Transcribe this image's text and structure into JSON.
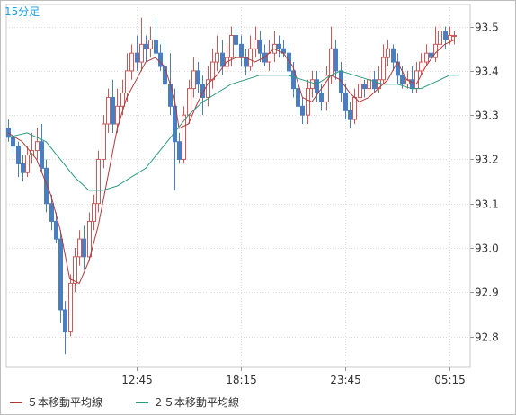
{
  "chart_data": {
    "type": "candlestick",
    "timeframe": "15分足",
    "y_axis": {
      "min": 92.73,
      "max": 93.55,
      "ticks": [
        92.8,
        92.9,
        93.0,
        93.1,
        93.2,
        93.3,
        93.4,
        93.5
      ],
      "position": "right"
    },
    "x_axis": {
      "ticks": [
        {
          "label": "12:45",
          "index": 27
        },
        {
          "label": "18:15",
          "index": 49
        },
        {
          "label": "23:45",
          "index": 71
        },
        {
          "label": "05:15",
          "index": 93
        }
      ]
    },
    "grid": true,
    "candle_colors": {
      "up": "#c85a5a",
      "down": "#4a7ec0"
    },
    "legend": {
      "position": "bottom-left"
    },
    "series": [
      {
        "name": "５本移動平均線",
        "color": "#b03a3a",
        "points": [
          [
            0,
            93.26
          ],
          [
            3,
            93.24
          ],
          [
            6,
            93.2
          ],
          [
            9,
            93.12
          ],
          [
            11,
            93.04
          ],
          [
            13,
            92.93
          ],
          [
            15,
            92.92
          ],
          [
            17,
            92.97
          ],
          [
            19,
            93.05
          ],
          [
            21,
            93.16
          ],
          [
            23,
            93.27
          ],
          [
            25,
            93.34
          ],
          [
            27,
            93.38
          ],
          [
            29,
            93.42
          ],
          [
            31,
            93.43
          ],
          [
            33,
            93.41
          ],
          [
            35,
            93.34
          ],
          [
            36,
            93.27
          ],
          [
            38,
            93.28
          ],
          [
            40,
            93.33
          ],
          [
            42,
            93.37
          ],
          [
            44,
            93.39
          ],
          [
            46,
            93.42
          ],
          [
            48,
            93.43
          ],
          [
            50,
            93.43
          ],
          [
            52,
            93.42
          ],
          [
            54,
            93.43
          ],
          [
            56,
            93.45
          ],
          [
            58,
            93.44
          ],
          [
            60,
            93.41
          ],
          [
            62,
            93.34
          ],
          [
            64,
            93.33
          ],
          [
            66,
            93.36
          ],
          [
            68,
            93.39
          ],
          [
            70,
            93.38
          ],
          [
            72,
            93.35
          ],
          [
            74,
            93.33
          ],
          [
            76,
            93.34
          ],
          [
            78,
            93.36
          ],
          [
            80,
            93.38
          ],
          [
            82,
            93.42
          ],
          [
            84,
            93.38
          ],
          [
            86,
            93.37
          ],
          [
            88,
            93.41
          ],
          [
            90,
            93.44
          ],
          [
            92,
            93.46
          ],
          [
            94,
            93.47
          ]
        ]
      },
      {
        "name": "２５本移動平均線",
        "color": "#2a9a80",
        "points": [
          [
            0,
            93.25
          ],
          [
            4,
            93.26
          ],
          [
            8,
            93.24
          ],
          [
            11,
            93.2
          ],
          [
            14,
            93.16
          ],
          [
            17,
            93.13
          ],
          [
            20,
            93.13
          ],
          [
            23,
            93.14
          ],
          [
            26,
            93.16
          ],
          [
            29,
            93.18
          ],
          [
            32,
            93.22
          ],
          [
            35,
            93.26
          ],
          [
            38,
            93.3
          ],
          [
            41,
            93.33
          ],
          [
            44,
            93.35
          ],
          [
            47,
            93.37
          ],
          [
            50,
            93.38
          ],
          [
            53,
            93.39
          ],
          [
            56,
            93.39
          ],
          [
            59,
            93.39
          ],
          [
            62,
            93.38
          ],
          [
            65,
            93.37
          ],
          [
            68,
            93.39
          ],
          [
            70,
            93.4
          ],
          [
            73,
            93.39
          ],
          [
            76,
            93.38
          ],
          [
            79,
            93.37
          ],
          [
            82,
            93.37
          ],
          [
            85,
            93.36
          ],
          [
            87,
            93.36
          ],
          [
            89,
            93.37
          ],
          [
            91,
            93.38
          ],
          [
            93,
            93.39
          ],
          [
            95,
            93.39
          ]
        ]
      }
    ],
    "candles": [
      [
        93.27,
        93.25,
        93.29,
        93.24
      ],
      [
        93.25,
        93.23,
        93.27,
        93.21
      ],
      [
        93.23,
        93.19,
        93.24,
        93.16
      ],
      [
        93.19,
        93.17,
        93.21,
        93.15
      ],
      [
        93.17,
        93.21,
        93.23,
        93.16
      ],
      [
        93.21,
        93.22,
        93.26,
        93.19
      ],
      [
        93.22,
        93.24,
        93.27,
        93.2
      ],
      [
        93.24,
        93.18,
        93.28,
        93.17
      ],
      [
        93.18,
        93.1,
        93.2,
        93.08
      ],
      [
        93.1,
        93.06,
        93.12,
        93.04
      ],
      [
        93.06,
        93.02,
        93.08,
        93.01
      ],
      [
        93.02,
        92.86,
        93.04,
        92.83
      ],
      [
        92.86,
        92.81,
        92.88,
        92.76
      ],
      [
        92.81,
        92.92,
        92.94,
        92.8
      ],
      [
        92.92,
        92.98,
        93.0,
        92.9
      ],
      [
        92.98,
        93.02,
        93.04,
        92.96
      ],
      [
        93.02,
        92.98,
        93.05,
        92.95
      ],
      [
        92.98,
        93.06,
        93.08,
        92.97
      ],
      [
        93.06,
        93.1,
        93.12,
        93.04
      ],
      [
        93.1,
        93.2,
        93.22,
        93.08
      ],
      [
        93.2,
        93.28,
        93.3,
        93.18
      ],
      [
        93.28,
        93.34,
        93.36,
        93.26
      ],
      [
        93.34,
        93.28,
        93.38,
        93.26
      ],
      [
        93.28,
        93.32,
        93.36,
        93.26
      ],
      [
        93.32,
        93.35,
        93.38,
        93.3
      ],
      [
        93.35,
        93.4,
        93.44,
        93.33
      ],
      [
        93.4,
        93.44,
        93.46,
        93.38
      ],
      [
        93.44,
        93.42,
        93.48,
        93.4
      ],
      [
        93.42,
        93.46,
        93.52,
        93.4
      ],
      [
        93.46,
        93.45,
        93.48,
        93.42
      ],
      [
        93.45,
        93.47,
        93.5,
        93.43
      ],
      [
        93.47,
        93.44,
        93.52,
        93.42
      ],
      [
        93.44,
        93.41,
        93.46,
        93.4
      ],
      [
        93.41,
        93.37,
        93.47,
        93.36
      ],
      [
        93.37,
        93.32,
        93.44,
        93.3
      ],
      [
        93.32,
        93.24,
        93.36,
        93.13
      ],
      [
        93.24,
        93.2,
        93.26,
        93.19
      ],
      [
        93.2,
        93.3,
        93.32,
        93.19
      ],
      [
        93.3,
        93.36,
        93.38,
        93.28
      ],
      [
        93.36,
        93.4,
        93.43,
        93.34
      ],
      [
        93.4,
        93.37,
        93.42,
        93.35
      ],
      [
        93.37,
        93.34,
        93.39,
        93.3
      ],
      [
        93.34,
        93.38,
        93.41,
        93.32
      ],
      [
        93.38,
        93.42,
        93.45,
        93.36
      ],
      [
        93.42,
        93.44,
        93.48,
        93.4
      ],
      [
        93.44,
        93.41,
        93.47,
        93.39
      ],
      [
        93.41,
        93.43,
        93.46,
        93.4
      ],
      [
        93.43,
        93.48,
        93.5,
        93.41
      ],
      [
        93.48,
        93.46,
        93.5,
        93.44
      ],
      [
        93.46,
        93.43,
        93.48,
        93.41
      ],
      [
        93.43,
        93.41,
        93.45,
        93.39
      ],
      [
        93.41,
        93.45,
        93.48,
        93.4
      ],
      [
        93.45,
        93.47,
        93.5,
        93.43
      ],
      [
        93.47,
        93.44,
        93.49,
        93.42
      ],
      [
        93.44,
        93.42,
        93.46,
        93.41
      ],
      [
        93.42,
        93.44,
        93.47,
        93.4
      ],
      [
        93.44,
        93.46,
        93.49,
        93.42
      ],
      [
        93.46,
        93.45,
        93.48,
        93.43
      ],
      [
        93.45,
        93.44,
        93.47,
        93.43
      ],
      [
        93.44,
        93.4,
        93.46,
        93.38
      ],
      [
        93.4,
        93.36,
        93.42,
        93.34
      ],
      [
        93.36,
        93.32,
        93.38,
        93.3
      ],
      [
        93.32,
        93.3,
        93.34,
        93.28
      ],
      [
        93.3,
        93.36,
        93.38,
        93.28
      ],
      [
        93.36,
        93.38,
        93.4,
        93.34
      ],
      [
        93.38,
        93.35,
        93.4,
        93.33
      ],
      [
        93.35,
        93.33,
        93.37,
        93.31
      ],
      [
        93.33,
        93.39,
        93.41,
        93.31
      ],
      [
        93.39,
        93.45,
        93.5,
        93.37
      ],
      [
        93.45,
        93.4,
        93.47,
        93.38
      ],
      [
        93.4,
        93.35,
        93.42,
        93.33
      ],
      [
        93.35,
        93.31,
        93.37,
        93.29
      ],
      [
        93.31,
        93.29,
        93.33,
        93.27
      ],
      [
        93.29,
        93.34,
        93.36,
        93.28
      ],
      [
        93.34,
        93.37,
        93.39,
        93.32
      ],
      [
        93.37,
        93.36,
        93.38,
        93.34
      ],
      [
        93.36,
        93.38,
        93.4,
        93.35
      ],
      [
        93.38,
        93.36,
        93.4,
        93.35
      ],
      [
        93.36,
        93.38,
        93.41,
        93.35
      ],
      [
        93.38,
        93.43,
        93.46,
        93.37
      ],
      [
        93.43,
        93.45,
        93.47,
        93.41
      ],
      [
        93.45,
        93.42,
        93.46,
        93.4
      ],
      [
        93.42,
        93.39,
        93.44,
        93.37
      ],
      [
        93.39,
        93.37,
        93.41,
        93.36
      ],
      [
        93.37,
        93.38,
        93.4,
        93.36
      ],
      [
        93.38,
        93.36,
        93.41,
        93.35
      ],
      [
        93.36,
        93.4,
        93.42,
        93.35
      ],
      [
        93.4,
        93.42,
        93.44,
        93.39
      ],
      [
        93.42,
        93.44,
        93.46,
        93.41
      ],
      [
        93.44,
        93.43,
        93.46,
        93.42
      ],
      [
        93.43,
        93.46,
        93.5,
        93.42
      ],
      [
        93.46,
        93.49,
        93.51,
        93.45
      ],
      [
        93.49,
        93.47,
        93.5,
        93.45
      ],
      [
        93.47,
        93.48,
        93.5,
        93.46
      ],
      [
        93.48,
        93.48,
        93.49,
        93.46
      ]
    ]
  }
}
